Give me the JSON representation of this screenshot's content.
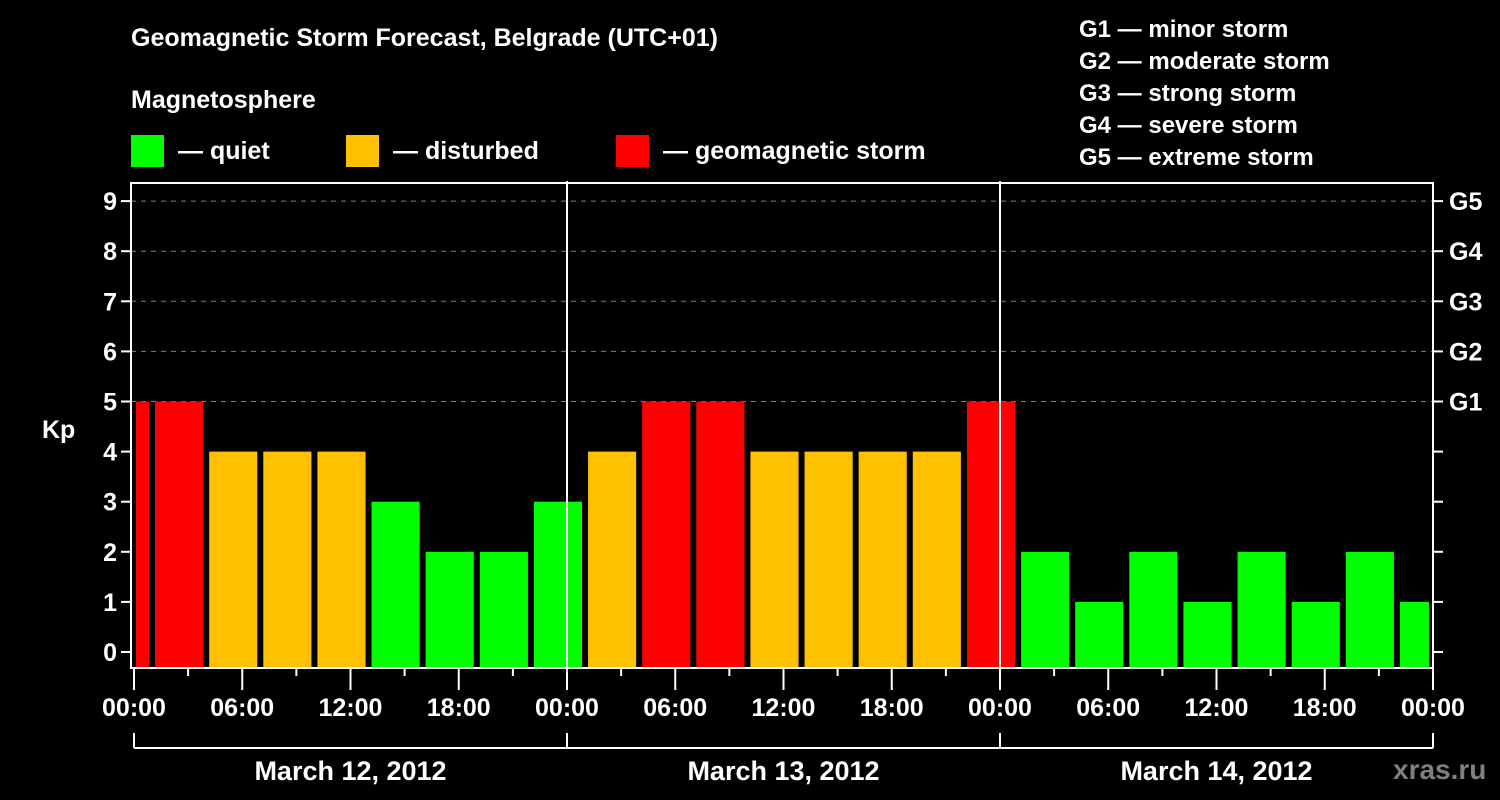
{
  "header": {
    "title": "Geomagnetic Storm Forecast, Belgrade (UTC+01)",
    "subtitle": "Magnetosphere"
  },
  "legend": [
    {
      "label": "— quiet",
      "color": "#00ff00"
    },
    {
      "label": "— disturbed",
      "color": "#ffc000"
    },
    {
      "label": "— geomagnetic storm",
      "color": "#ff0000"
    }
  ],
  "g_scale_legend": [
    "G1 — minor storm",
    "G2 — moderate storm",
    "G3 — strong storm",
    "G4 — severe storm",
    "G5 — extreme storm"
  ],
  "watermark": "xras.ru",
  "colors": {
    "quiet": "#00ff00",
    "disturbed": "#ffc000",
    "storm": "#ff0000",
    "grid": "#808080",
    "axis": "#ffffff"
  },
  "chart_data": {
    "type": "bar",
    "title": "Geomagnetic Storm Forecast, Belgrade (UTC+01)",
    "ylabel": "Kp",
    "ylim": [
      0,
      9
    ],
    "yticks": [
      0,
      1,
      2,
      3,
      4,
      5,
      6,
      7,
      8,
      9
    ],
    "right_axis_labels": [
      {
        "kp": 5,
        "label": "G1"
      },
      {
        "kp": 6,
        "label": "G2"
      },
      {
        "kp": 7,
        "label": "G3"
      },
      {
        "kp": 8,
        "label": "G4"
      },
      {
        "kp": 9,
        "label": "G5"
      }
    ],
    "grid": "dashed horizontal at Kp 5-9",
    "xtick_labels": [
      "00:00",
      "06:00",
      "12:00",
      "18:00",
      "00:00",
      "06:00",
      "12:00",
      "18:00",
      "00:00",
      "06:00",
      "12:00",
      "18:00",
      "00:00"
    ],
    "days": [
      "March 12, 2012",
      "March 13, 2012",
      "March 14, 2012"
    ],
    "bar_interval_hours": 3,
    "first_bar_start_hour": -2,
    "bars": [
      {
        "start": "Mar 11 22:00",
        "kp": 5,
        "level": "storm"
      },
      {
        "start": "Mar 12 01:00",
        "kp": 5,
        "level": "storm"
      },
      {
        "start": "Mar 12 04:00",
        "kp": 4,
        "level": "disturbed"
      },
      {
        "start": "Mar 12 07:00",
        "kp": 4,
        "level": "disturbed"
      },
      {
        "start": "Mar 12 10:00",
        "kp": 4,
        "level": "disturbed"
      },
      {
        "start": "Mar 12 13:00",
        "kp": 3,
        "level": "quiet"
      },
      {
        "start": "Mar 12 16:00",
        "kp": 2,
        "level": "quiet"
      },
      {
        "start": "Mar 12 19:00",
        "kp": 2,
        "level": "quiet"
      },
      {
        "start": "Mar 12 22:00",
        "kp": 3,
        "level": "quiet"
      },
      {
        "start": "Mar 13 01:00",
        "kp": 4,
        "level": "disturbed"
      },
      {
        "start": "Mar 13 04:00",
        "kp": 5,
        "level": "storm"
      },
      {
        "start": "Mar 13 07:00",
        "kp": 5,
        "level": "storm"
      },
      {
        "start": "Mar 13 10:00",
        "kp": 4,
        "level": "disturbed"
      },
      {
        "start": "Mar 13 13:00",
        "kp": 4,
        "level": "disturbed"
      },
      {
        "start": "Mar 13 16:00",
        "kp": 4,
        "level": "disturbed"
      },
      {
        "start": "Mar 13 19:00",
        "kp": 4,
        "level": "disturbed"
      },
      {
        "start": "Mar 13 22:00",
        "kp": 5,
        "level": "storm"
      },
      {
        "start": "Mar 14 01:00",
        "kp": 2,
        "level": "quiet"
      },
      {
        "start": "Mar 14 04:00",
        "kp": 1,
        "level": "quiet"
      },
      {
        "start": "Mar 14 07:00",
        "kp": 2,
        "level": "quiet"
      },
      {
        "start": "Mar 14 10:00",
        "kp": 1,
        "level": "quiet"
      },
      {
        "start": "Mar 14 13:00",
        "kp": 2,
        "level": "quiet"
      },
      {
        "start": "Mar 14 16:00",
        "kp": 1,
        "level": "quiet"
      },
      {
        "start": "Mar 14 19:00",
        "kp": 2,
        "level": "quiet"
      },
      {
        "start": "Mar 14 22:00",
        "kp": 1,
        "level": "quiet"
      }
    ]
  }
}
